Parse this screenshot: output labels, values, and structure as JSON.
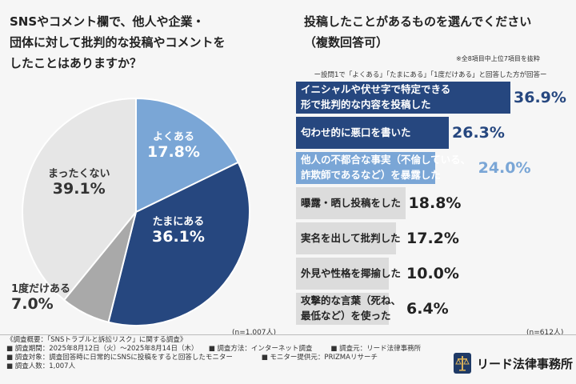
{
  "left_question": [
    "SNSやコメント欄で、他人や企業・",
    "団体に対して批判的な投稿やコメントを",
    "したことはありますか？"
  ],
  "right_question": [
    "投稿したことがあるものを選んでください",
    "（複数回答可）"
  ],
  "right_note": "※全8項目中上位7項目を抜粋",
  "right_subnote": "ー設問1で「よくある」「たまにある」「1度だけある」と回答した方が回答ー",
  "left_n": "(n=1,007人)",
  "right_n": "(n=612人)",
  "chart_data": [
    {
      "type": "pie",
      "slices": [
        {
          "label": "よくある",
          "value": 17.8,
          "value_label": "17.8%",
          "color": "#7aa6d6"
        },
        {
          "label": "たまにある",
          "value": 36.1,
          "value_label": "36.1%",
          "color": "#26477f"
        },
        {
          "label": "1度だけある",
          "value": 7.0,
          "value_label": "7.0%",
          "color": "#a9a9a9"
        },
        {
          "label": "まったくない",
          "value": 39.1,
          "value_label": "39.1%",
          "color": "#e6e6e6"
        }
      ]
    },
    {
      "type": "bar",
      "orientation": "horizontal",
      "categories": [
        [
          "イニシャルや伏せ字で特定できる",
          "形で批判的な内容を投稿した"
        ],
        [
          "匂わせ的に悪口を書いた"
        ],
        [
          "他人の不都合な事実（不倫している、",
          "詐欺師であるなど）を暴露した"
        ],
        [
          "曝露・晒し投稿をした"
        ],
        [
          "実名を出して批判した"
        ],
        [
          "外見や性格を揶揄した"
        ],
        [
          "攻撃的な言葉（死ね、",
          "最低など）を使った"
        ]
      ],
      "values": [
        36.9,
        26.3,
        24.0,
        18.8,
        17.2,
        10.0,
        6.4
      ],
      "value_labels": [
        "36.9%",
        "26.3%",
        "24.0%",
        "18.8%",
        "17.2%",
        "10.0%",
        "6.4%"
      ],
      "colors": [
        "#26477f",
        "#26477f",
        "#7aa6d6",
        "#dcdcdc",
        "#dcdcdc",
        "#dcdcdc",
        "#dcdcdc"
      ],
      "label_colors": [
        "#ffffff",
        "#ffffff",
        "#ffffff",
        "#222222",
        "#222222",
        "#222222",
        "#222222"
      ],
      "value_colors": [
        "#26477f",
        "#26477f",
        "#7aa6d6",
        "#222222",
        "#222222",
        "#222222",
        "#222222"
      ]
    }
  ],
  "footer": {
    "line1": "《調査概要：「SNSトラブルと訴訟リスク」に関する調査》",
    "period": "■ 調査期間：2025年8月12日（火）〜2025年8月14日（木）",
    "method": "■ 調査方法：インターネット調査",
    "source": "■ 調査元：リード法律事務所",
    "target": "■ 調査対象：調査回答時に日常的にSNSに投稿をすると回答したモニター",
    "provider": "■ モニター提供元：PRIZMAリサーチ",
    "count": "■ 調査人数：1,007人"
  },
  "logo_text": "リード法律事務所"
}
